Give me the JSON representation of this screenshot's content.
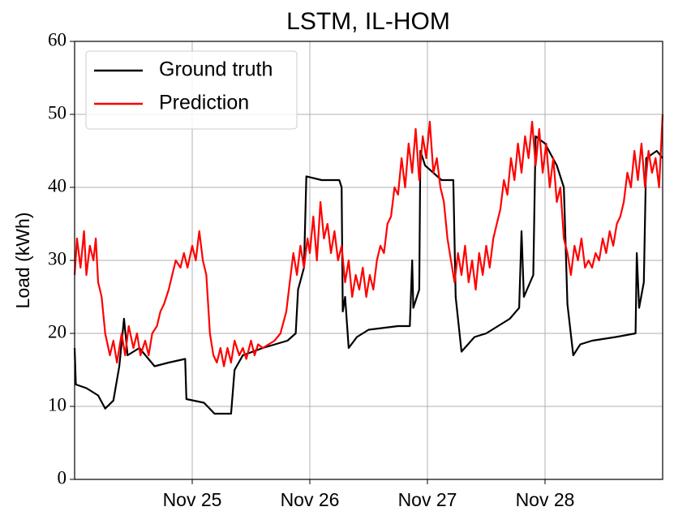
{
  "chart_data": {
    "type": "line",
    "title": "LSTM, IL-HOM",
    "ylabel": "Load (kWh)",
    "xlim": [
      0,
      5
    ],
    "xticks": [
      {
        "value": 1,
        "label": "Nov 25"
      },
      {
        "value": 2,
        "label": "Nov 26"
      },
      {
        "value": 3,
        "label": "Nov 27"
      },
      {
        "value": 4,
        "label": "Nov 28"
      }
    ],
    "ylim": [
      0,
      60
    ],
    "yticks": [
      0,
      10,
      20,
      30,
      40,
      50,
      60
    ],
    "grid": true,
    "legend": "upper left",
    "series": [
      {
        "name": "Ground truth",
        "color": "#000000",
        "x": [
          0,
          0.01,
          0.1,
          0.2,
          0.26,
          0.33,
          0.38,
          0.42,
          0.45,
          0.55,
          0.68,
          0.8,
          0.94,
          0.95,
          1.1,
          1.19,
          1.33,
          1.36,
          1.43,
          1.6,
          1.81,
          1.88,
          1.9,
          1.95,
          1.97,
          2.1,
          2.25,
          2.27,
          2.28,
          2.3,
          2.33,
          2.4,
          2.5,
          2.75,
          2.85,
          2.87,
          2.88,
          2.93,
          2.94,
          2.98,
          3.12,
          3.22,
          3.24,
          3.29,
          3.4,
          3.5,
          3.6,
          3.7,
          3.78,
          3.8,
          3.82,
          3.9,
          3.92,
          4.0,
          4.1,
          4.16,
          4.19,
          4.24,
          4.3,
          4.4,
          4.6,
          4.77,
          4.78,
          4.8,
          4.84,
          4.86,
          4.95,
          5
        ],
        "values": [
          18,
          13,
          12.5,
          11.5,
          9.7,
          10.8,
          15.5,
          22,
          17,
          18,
          15.5,
          16,
          16.5,
          11,
          10.5,
          9,
          9,
          15,
          17,
          18,
          19,
          20,
          26,
          29,
          41.5,
          41,
          41,
          40,
          23,
          25,
          18,
          19.5,
          20.5,
          21,
          21,
          30,
          23.5,
          26,
          45,
          43,
          41,
          41,
          25,
          17.5,
          19.5,
          20,
          21,
          22,
          23.5,
          34,
          25,
          28,
          47,
          46,
          43,
          40,
          24,
          17,
          18.5,
          19,
          19.5,
          20,
          31,
          23.5,
          27,
          44,
          45,
          44
        ]
      },
      {
        "name": "Prediction",
        "color": "#ff0000",
        "x": [
          0,
          0.02,
          0.05,
          0.08,
          0.1,
          0.13,
          0.16,
          0.18,
          0.2,
          0.23,
          0.26,
          0.3,
          0.33,
          0.36,
          0.4,
          0.43,
          0.46,
          0.5,
          0.53,
          0.56,
          0.6,
          0.63,
          0.66,
          0.7,
          0.73,
          0.76,
          0.8,
          0.83,
          0.86,
          0.9,
          0.93,
          0.96,
          1.0,
          1.03,
          1.06,
          1.09,
          1.12,
          1.15,
          1.18,
          1.21,
          1.24,
          1.27,
          1.3,
          1.33,
          1.36,
          1.4,
          1.43,
          1.46,
          1.5,
          1.53,
          1.56,
          1.6,
          1.65,
          1.7,
          1.75,
          1.8,
          1.83,
          1.86,
          1.89,
          1.92,
          1.95,
          1.98,
          2.0,
          2.03,
          2.06,
          2.09,
          2.12,
          2.15,
          2.18,
          2.21,
          2.24,
          2.27,
          2.3,
          2.33,
          2.36,
          2.39,
          2.42,
          2.45,
          2.48,
          2.51,
          2.54,
          2.57,
          2.6,
          2.63,
          2.66,
          2.69,
          2.72,
          2.75,
          2.78,
          2.81,
          2.84,
          2.87,
          2.9,
          2.93,
          2.96,
          2.99,
          3.02,
          3.05,
          3.08,
          3.11,
          3.14,
          3.17,
          3.2,
          3.23,
          3.26,
          3.29,
          3.32,
          3.35,
          3.38,
          3.41,
          3.44,
          3.47,
          3.5,
          3.53,
          3.56,
          3.59,
          3.62,
          3.65,
          3.68,
          3.71,
          3.74,
          3.77,
          3.8,
          3.83,
          3.86,
          3.89,
          3.92,
          3.95,
          3.98,
          4.01,
          4.04,
          4.07,
          4.1,
          4.13,
          4.16,
          4.19,
          4.22,
          4.25,
          4.28,
          4.31,
          4.34,
          4.37,
          4.4,
          4.43,
          4.46,
          4.49,
          4.52,
          4.55,
          4.58,
          4.61,
          4.64,
          4.67,
          4.7,
          4.73,
          4.76,
          4.79,
          4.82,
          4.85,
          4.88,
          4.91,
          4.94,
          4.97,
          5.0
        ],
        "values": [
          28,
          33,
          29,
          34,
          28,
          32,
          30,
          33,
          27,
          25,
          20,
          17,
          19,
          16,
          20,
          17,
          21,
          18,
          20,
          17,
          19,
          17,
          20,
          21,
          23,
          24,
          26,
          28,
          30,
          29,
          31,
          29,
          32,
          30,
          34,
          30,
          28,
          20,
          17,
          16,
          18,
          15.5,
          18,
          16,
          19,
          17,
          18,
          16.5,
          19,
          17,
          18.5,
          18,
          18.5,
          19,
          20,
          23,
          27,
          31,
          28,
          32,
          29,
          33,
          31,
          36,
          30,
          38,
          33,
          35,
          31,
          34,
          30,
          32,
          27,
          30,
          25,
          28,
          26,
          29,
          25,
          28,
          26,
          30,
          32,
          31,
          35,
          36,
          40,
          39,
          44,
          40,
          46,
          42,
          48,
          41,
          47,
          44,
          49,
          42,
          44,
          40,
          38,
          33,
          30,
          27,
          31,
          28,
          32,
          27,
          30,
          26,
          31,
          28,
          32,
          29,
          33,
          35,
          37,
          41,
          39,
          44,
          41,
          46,
          42,
          47,
          44,
          49,
          43,
          48,
          42,
          46,
          40,
          44,
          38,
          40,
          33,
          31,
          28,
          32,
          30,
          33,
          29,
          30,
          29,
          31,
          30,
          33,
          31,
          34,
          32,
          35,
          36,
          38,
          42,
          40,
          45,
          41,
          46,
          40,
          45,
          42,
          44,
          40,
          50
        ]
      }
    ]
  }
}
